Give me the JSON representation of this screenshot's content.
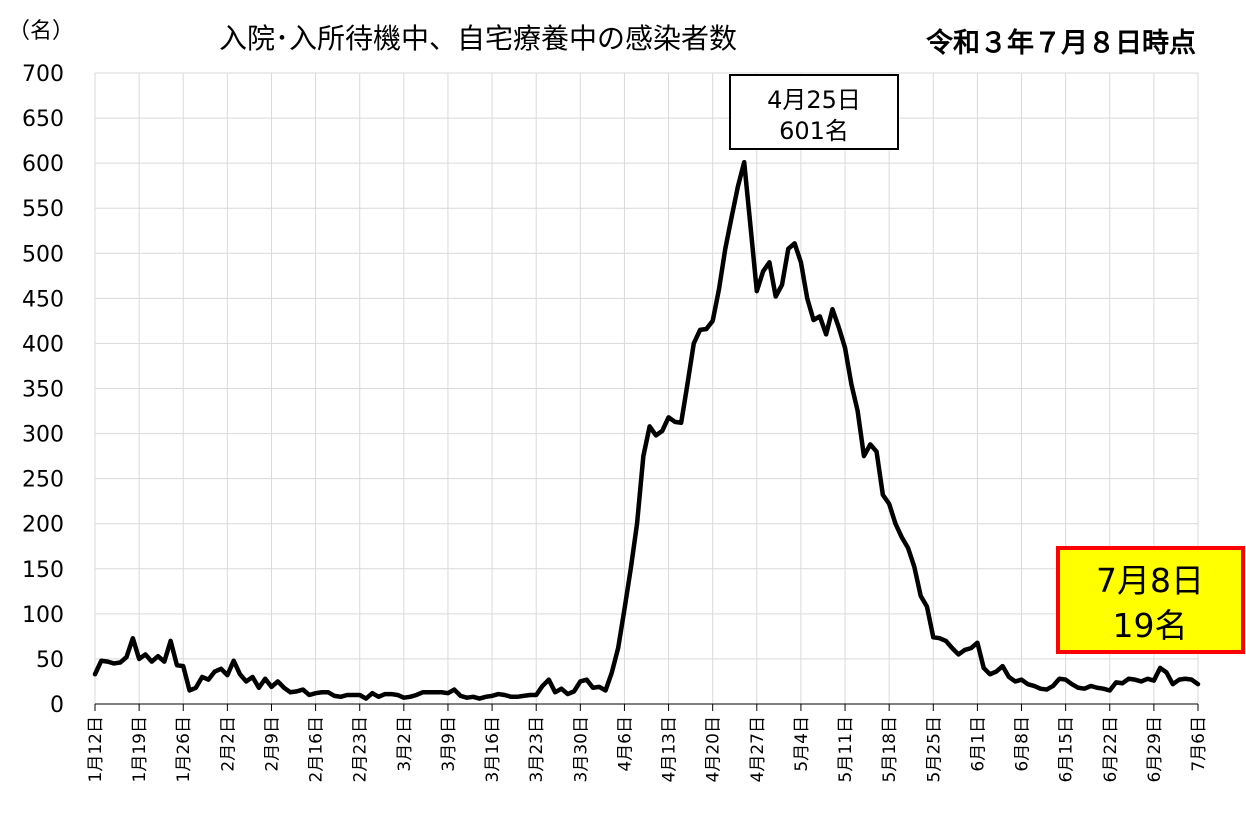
{
  "chart_data": {
    "type": "line",
    "title": "入院･入所待機中、自宅療養中の感染者数",
    "date_label": "令和３年７月８日時点",
    "ylabel": "（名）",
    "xlabel": "",
    "ylim": [
      0,
      700
    ],
    "yticks": [
      0,
      50,
      100,
      150,
      200,
      250,
      300,
      350,
      400,
      450,
      500,
      550,
      600,
      650,
      700
    ],
    "grid": true,
    "legend": "none",
    "x_tick_labels": [
      "1月12日",
      "1月19日",
      "1月26日",
      "2月2日",
      "2月9日",
      "2月16日",
      "2月23日",
      "3月2日",
      "3月9日",
      "3月16日",
      "3月23日",
      "3月30日",
      "4月6日",
      "4月13日",
      "4月20日",
      "4月27日",
      "5月4日",
      "5月11日",
      "5月18日",
      "5月25日",
      "6月1日",
      "6月8日",
      "6月15日",
      "6月22日",
      "6月29日",
      "7月6日"
    ],
    "series": [
      {
        "values": [
          33,
          48,
          47,
          45,
          46,
          52,
          73,
          50,
          55,
          47,
          53,
          47,
          70,
          43,
          42,
          15,
          18,
          30,
          27,
          36,
          39,
          32,
          48,
          33,
          25,
          30,
          18,
          28,
          19,
          25,
          18,
          13,
          14,
          16,
          10,
          12,
          13,
          13,
          9,
          8,
          10,
          10,
          10,
          6,
          12,
          8,
          11,
          11,
          10,
          7,
          8,
          10,
          13,
          13,
          13,
          13,
          12,
          16,
          9,
          7,
          8,
          6,
          8,
          9,
          11,
          10,
          8,
          8,
          9,
          10,
          10,
          20,
          27,
          13,
          17,
          11,
          14,
          25,
          27,
          18,
          19,
          15,
          35,
          62,
          105,
          150,
          200,
          275,
          308,
          298,
          303,
          318,
          313,
          312,
          355,
          400,
          415,
          416,
          425,
          460,
          505,
          540,
          574,
          601,
          530,
          458,
          480,
          490,
          452,
          465,
          505,
          511,
          490,
          450,
          426,
          430,
          410,
          438,
          418,
          395,
          355,
          325,
          275,
          288,
          280,
          232,
          222,
          200,
          185,
          173,
          152,
          120,
          108,
          74,
          73,
          70,
          62,
          55,
          60,
          62,
          68,
          40,
          33,
          36,
          42,
          30,
          25,
          27,
          22,
          20,
          17,
          16,
          20,
          28,
          27,
          22,
          18,
          17,
          20,
          18,
          17,
          15,
          24,
          23,
          28,
          27,
          25,
          28,
          26,
          40,
          35,
          22,
          27,
          28,
          27,
          22
        ]
      }
    ],
    "annotations": [
      {
        "line1": "4月25日",
        "line2": "601名"
      },
      {
        "line1": "7月8日",
        "line2": "19名"
      }
    ],
    "colors": {
      "line": "#000000",
      "grid": "#d9d9d9",
      "latest_box_fill": "#ffff00",
      "latest_box_border": "#ff0000"
    }
  }
}
